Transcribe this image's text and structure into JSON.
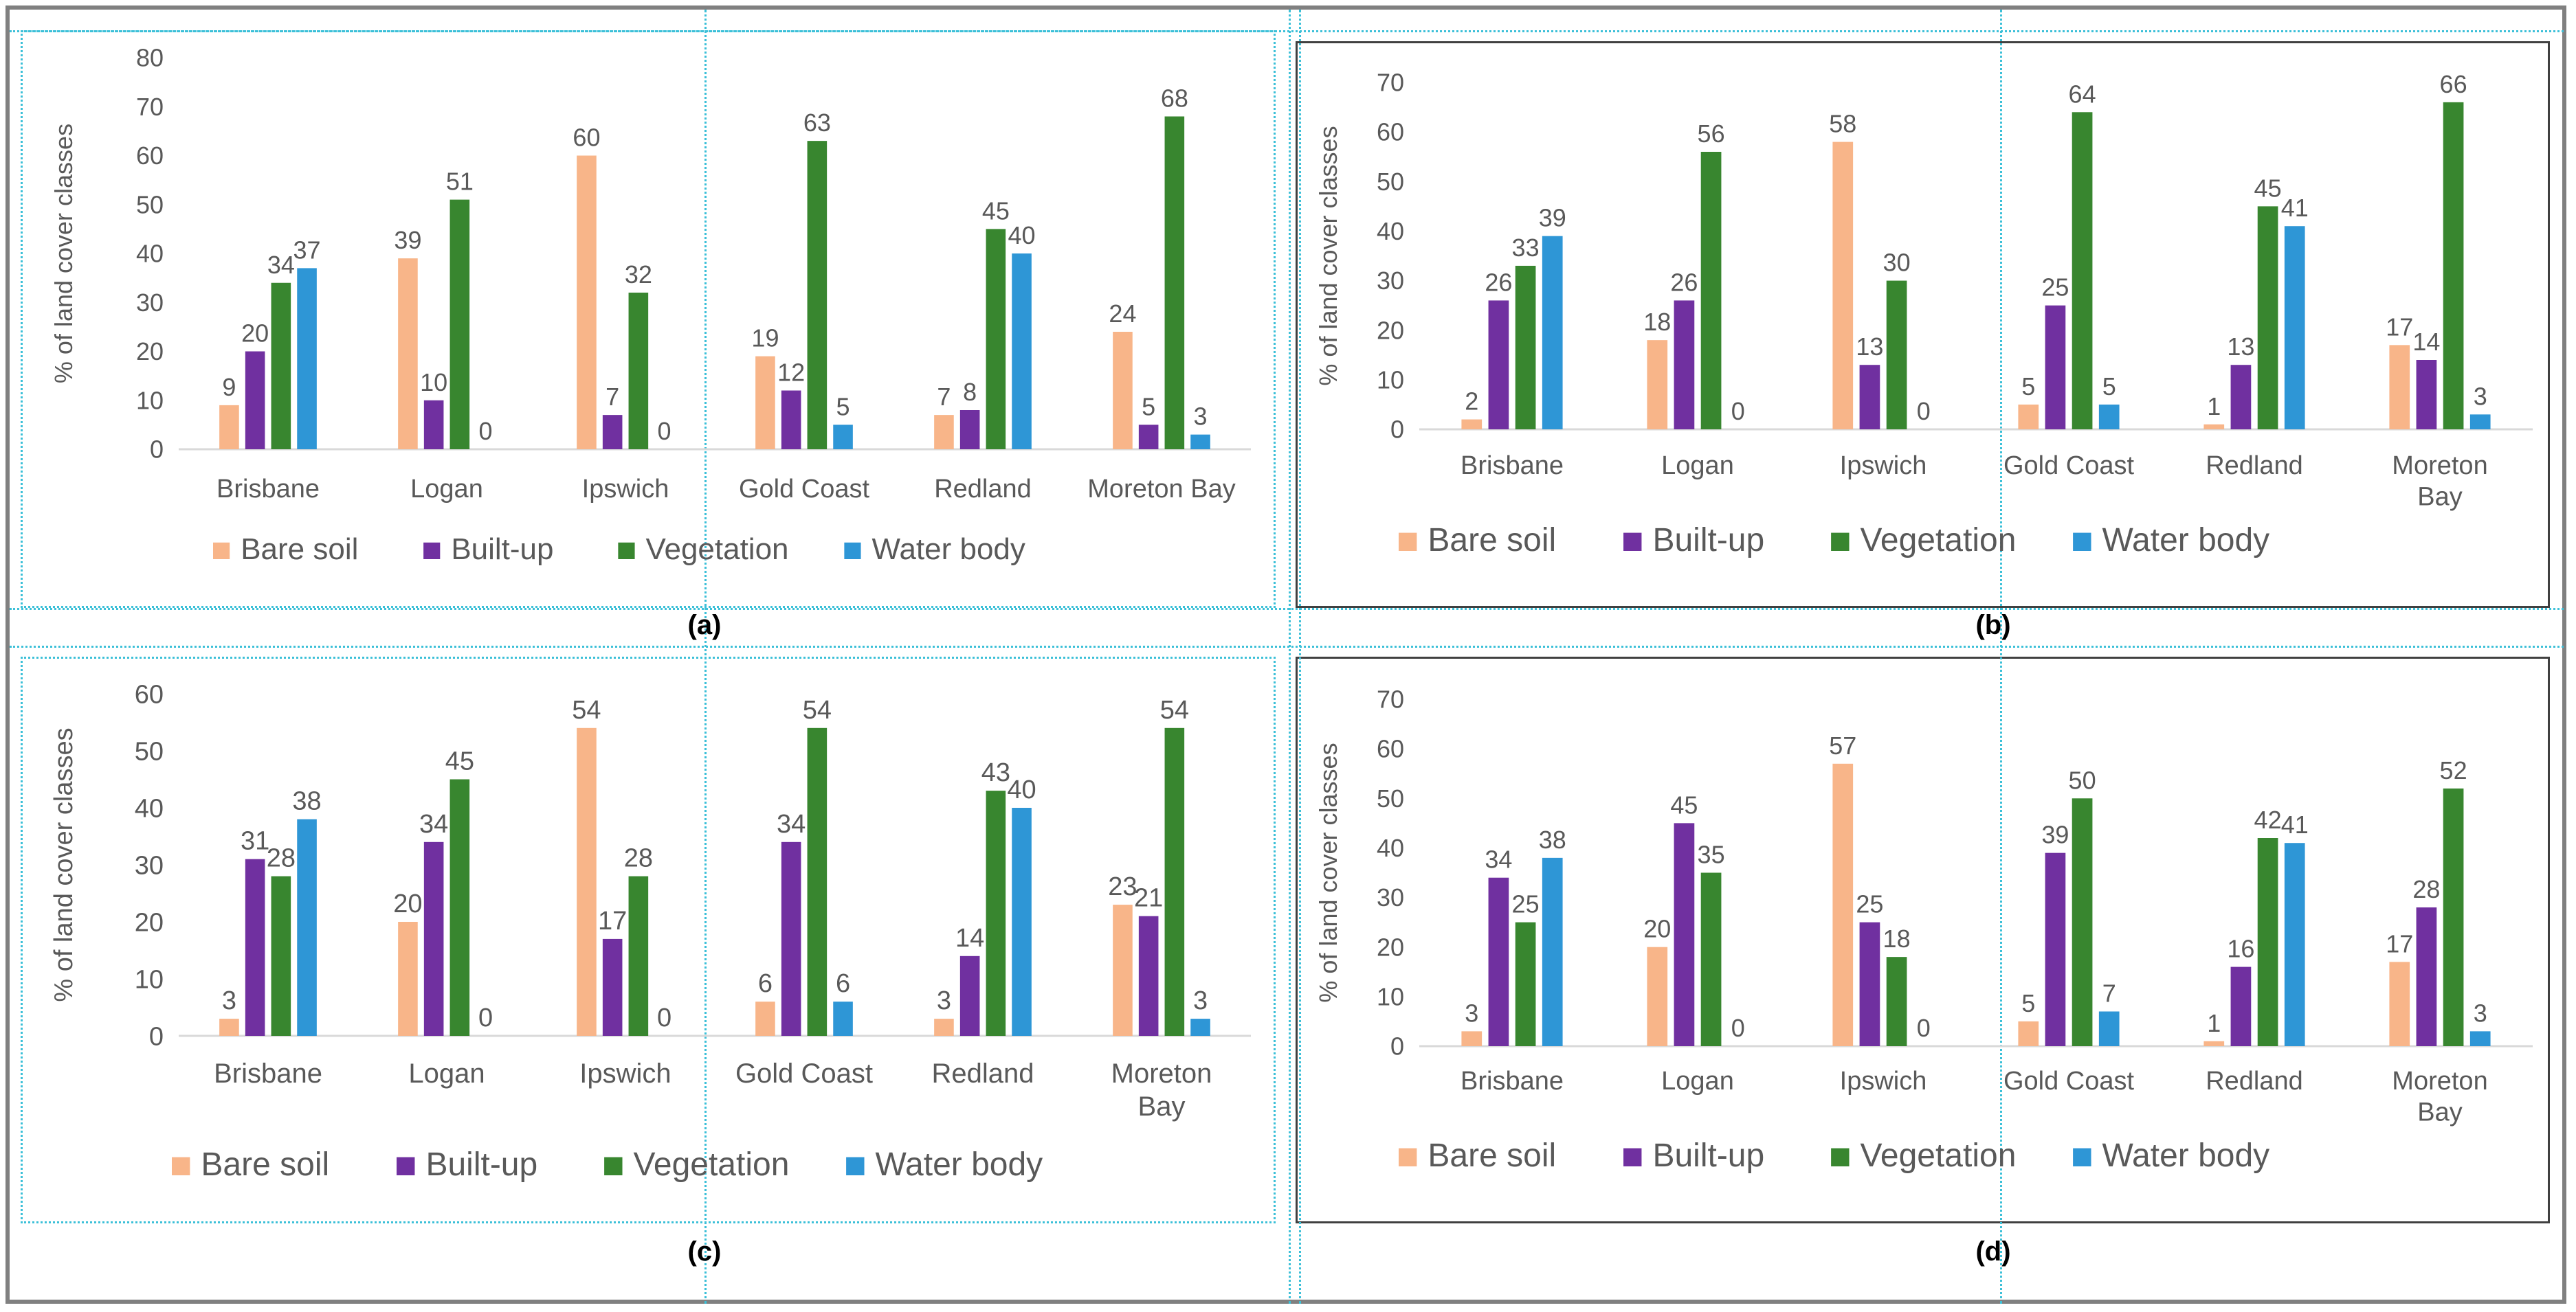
{
  "figure": {
    "panel_labels": [
      "(a)",
      "(b)",
      "(c)",
      "(d)"
    ],
    "colors": {
      "bare_soil": "#f8b589",
      "built_up": "#7030a0",
      "vegetation": "#38862f",
      "water_body": "#2e96d6",
      "axis": "#d9d9d9",
      "text": "#595959"
    }
  },
  "chart_data": [
    {
      "panel": "(a)",
      "type": "bar",
      "ylabel": "% of land cover classes",
      "xlabel": "",
      "ylim": [
        0,
        80
      ],
      "yticks": [
        0,
        10,
        20,
        30,
        40,
        50,
        60,
        70,
        80
      ],
      "categories": [
        "Brisbane",
        "Logan",
        "Ipswich",
        "Gold Coast",
        "Redland",
        "Moreton Bay"
      ],
      "series": [
        {
          "name": "Bare soil",
          "values": [
            9,
            39,
            60,
            19,
            7,
            24
          ]
        },
        {
          "name": "Built-up",
          "values": [
            20,
            10,
            7,
            12,
            8,
            5
          ]
        },
        {
          "name": "Vegetation",
          "values": [
            34,
            51,
            32,
            63,
            45,
            68
          ]
        },
        {
          "name": "Water body",
          "values": [
            37,
            0,
            0,
            5,
            40,
            3
          ]
        }
      ],
      "legend": "bottom"
    },
    {
      "panel": "(b)",
      "type": "bar",
      "ylabel": "% of land cover classes",
      "xlabel": "",
      "ylim": [
        0,
        70
      ],
      "yticks": [
        0,
        10,
        20,
        30,
        40,
        50,
        60,
        70
      ],
      "categories": [
        "Brisbane",
        "Logan",
        "Ipswich",
        "Gold Coast",
        "Redland",
        "Moreton Bay"
      ],
      "series": [
        {
          "name": "Bare soil",
          "values": [
            2,
            18,
            58,
            5,
            1,
            17
          ]
        },
        {
          "name": "Built-up",
          "values": [
            26,
            26,
            13,
            25,
            13,
            14
          ]
        },
        {
          "name": "Vegetation",
          "values": [
            33,
            56,
            30,
            64,
            45,
            66
          ]
        },
        {
          "name": "Water body",
          "values": [
            39,
            0,
            0,
            5,
            41,
            3
          ]
        }
      ],
      "legend": "bottom"
    },
    {
      "panel": "(c)",
      "type": "bar",
      "ylabel": "% of land cover classes",
      "xlabel": "",
      "ylim": [
        0,
        60
      ],
      "yticks": [
        0,
        10,
        20,
        30,
        40,
        50,
        60
      ],
      "categories": [
        "Brisbane",
        "Logan",
        "Ipswich",
        "Gold Coast",
        "Redland",
        "Moreton Bay"
      ],
      "series": [
        {
          "name": "Bare soil",
          "values": [
            3,
            20,
            54,
            6,
            3,
            23
          ]
        },
        {
          "name": "Built-up",
          "values": [
            31,
            34,
            17,
            34,
            14,
            21
          ]
        },
        {
          "name": "Vegetation",
          "values": [
            28,
            45,
            28,
            54,
            43,
            54
          ]
        },
        {
          "name": "Water body",
          "values": [
            38,
            0,
            0,
            6,
            40,
            3
          ]
        }
      ],
      "legend": "bottom"
    },
    {
      "panel": "(d)",
      "type": "bar",
      "ylabel": "% of land cover classes",
      "xlabel": "",
      "ylim": [
        0,
        70
      ],
      "yticks": [
        0,
        10,
        20,
        30,
        40,
        50,
        60,
        70
      ],
      "categories": [
        "Brisbane",
        "Logan",
        "Ipswich",
        "Gold Coast",
        "Redland",
        "Moreton Bay"
      ],
      "series": [
        {
          "name": "Bare soil",
          "values": [
            3,
            20,
            57,
            5,
            1,
            17
          ]
        },
        {
          "name": "Built-up",
          "values": [
            34,
            45,
            25,
            39,
            16,
            28
          ]
        },
        {
          "name": "Vegetation",
          "values": [
            25,
            35,
            18,
            50,
            42,
            52
          ]
        },
        {
          "name": "Water body",
          "values": [
            38,
            0,
            0,
            7,
            41,
            3
          ]
        }
      ],
      "legend": "bottom"
    }
  ]
}
